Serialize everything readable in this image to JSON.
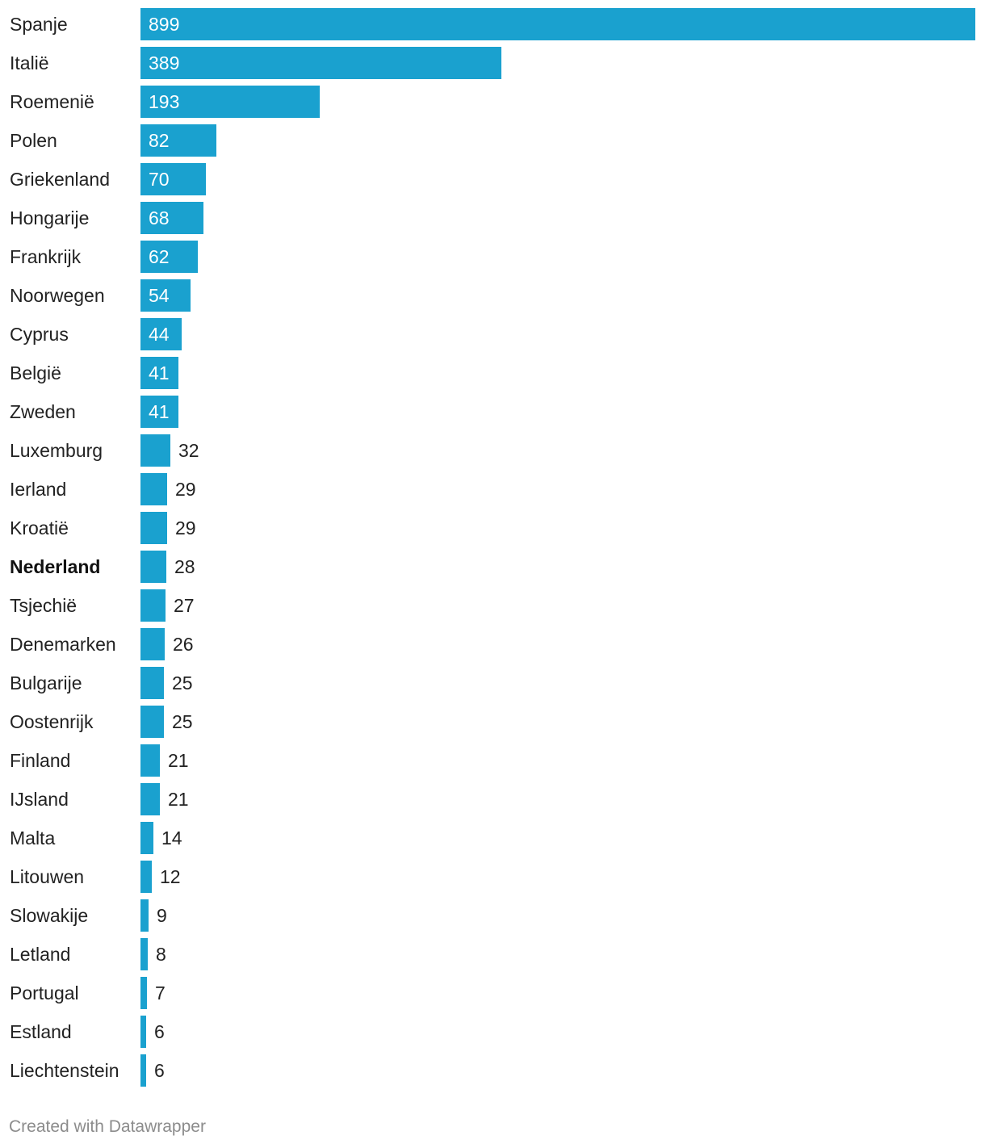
{
  "chart_data": {
    "type": "bar",
    "orientation": "horizontal",
    "categories": [
      "Spanje",
      "Italië",
      "Roemenië",
      "Polen",
      "Griekenland",
      "Hongarije",
      "Frankrijk",
      "Noorwegen",
      "Cyprus",
      "België",
      "Zweden",
      "Luxemburg",
      "Ierland",
      "Kroatië",
      "Nederland",
      "Tsjechië",
      "Denemarken",
      "Bulgarije",
      "Oostenrijk",
      "Finland",
      "IJsland",
      "Malta",
      "Litouwen",
      "Slowakije",
      "Letland",
      "Portugal",
      "Estland",
      "Liechtenstein"
    ],
    "values": [
      899,
      389,
      193,
      82,
      70,
      68,
      62,
      54,
      44,
      41,
      41,
      32,
      29,
      29,
      28,
      27,
      26,
      25,
      25,
      21,
      21,
      14,
      12,
      9,
      8,
      7,
      6,
      6
    ],
    "highlighted_category": "Nederland",
    "xlim": [
      0,
      899
    ],
    "bar_color": "#1aa1cf",
    "grid": false,
    "legend": "none"
  },
  "footer": {
    "credit": "Created with Datawrapper"
  }
}
